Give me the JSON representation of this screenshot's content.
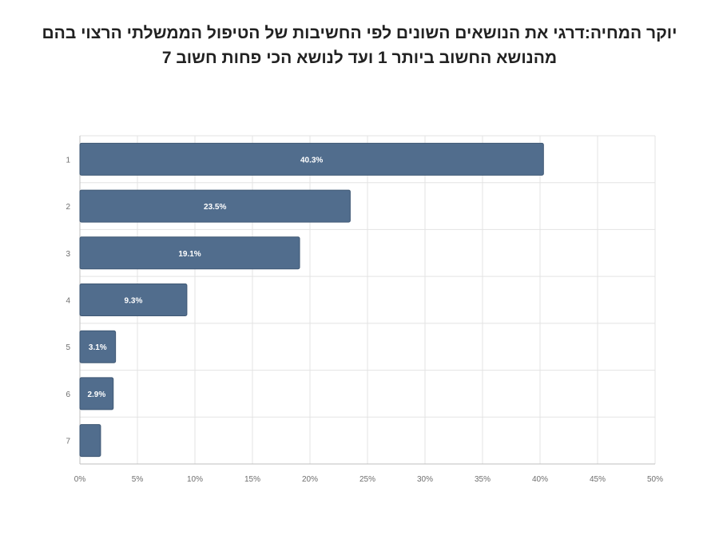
{
  "chart_data": {
    "type": "bar",
    "orientation": "horizontal",
    "title_lines": [
      "יוקר המחיה:דרגי את הנושאים השונים לפי החשיבות של הטיפול הממשלתי הרצוי בהם",
      "מהנושא החשוב ביותר 1 ועד לנושא הכי פחות חשוב 7"
    ],
    "categories": [
      "1",
      "2",
      "3",
      "4",
      "5",
      "6",
      "7"
    ],
    "values": [
      40.3,
      23.5,
      19.1,
      9.3,
      3.1,
      2.9,
      1.8
    ],
    "data_labels": [
      "40.3%",
      "23.5%",
      "19.1%",
      "9.3%",
      "3.1%",
      "2.9%",
      ""
    ],
    "x_ticks": [
      "0%",
      "5%",
      "10%",
      "15%",
      "20%",
      "25%",
      "30%",
      "35%",
      "40%",
      "45%",
      "50%"
    ],
    "xlim": [
      0,
      50
    ],
    "grid": true,
    "legend": "none",
    "colors": {
      "bar": "#516d8d",
      "bar_edge": "#3f5874",
      "grid": "#e3e3e3",
      "axis": "#bfbfbf"
    }
  }
}
